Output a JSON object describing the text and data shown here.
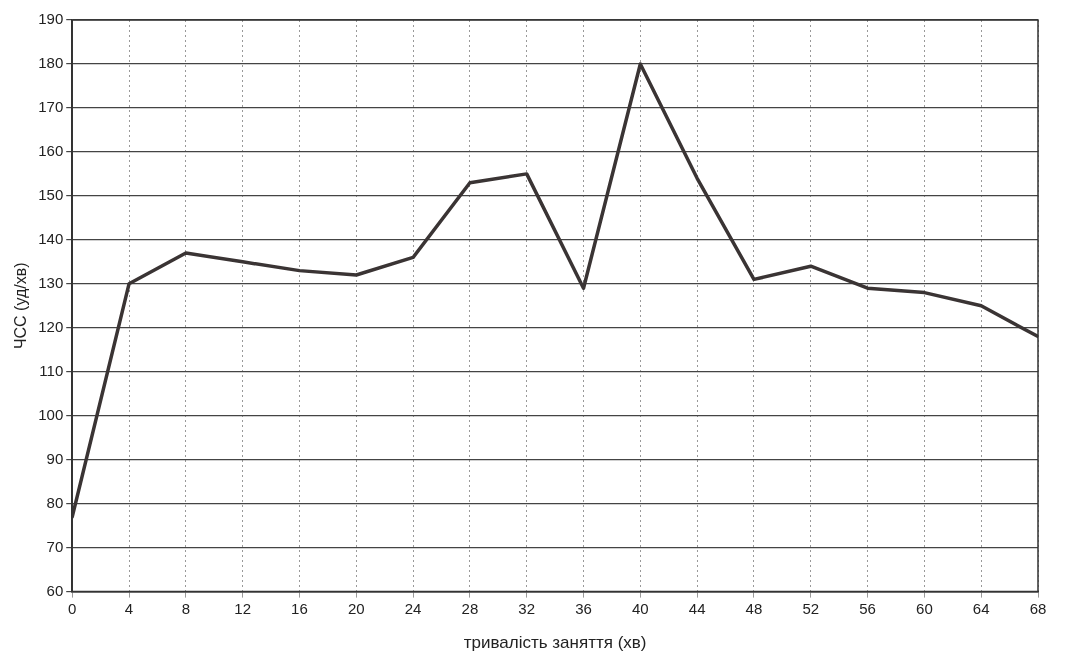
{
  "chart_data": {
    "type": "line",
    "xlabel": "тривалість заняття (хв)",
    "ylabel": "ЧСС (уд/хв)",
    "x": [
      0,
      4,
      8,
      12,
      16,
      20,
      24,
      28,
      32,
      36,
      40,
      44,
      48,
      52,
      56,
      60,
      64,
      68
    ],
    "series": [
      {
        "color": "#3a3434",
        "values": [
          77,
          130,
          137,
          135,
          133,
          132,
          136,
          153,
          155,
          129,
          180,
          154,
          131,
          134,
          129,
          128,
          125,
          118
        ]
      }
    ],
    "xlim": [
      0,
      68
    ],
    "xticks": [
      0,
      4,
      8,
      12,
      16,
      20,
      24,
      28,
      32,
      36,
      40,
      44,
      48,
      52,
      56,
      60,
      64,
      68
    ],
    "ylim": [
      60,
      190
    ],
    "yticks": [
      60,
      70,
      80,
      90,
      100,
      110,
      120,
      130,
      140,
      150,
      160,
      170,
      180,
      190
    ],
    "grid": true,
    "legend": false,
    "marker": "none",
    "line_style": "solid"
  }
}
